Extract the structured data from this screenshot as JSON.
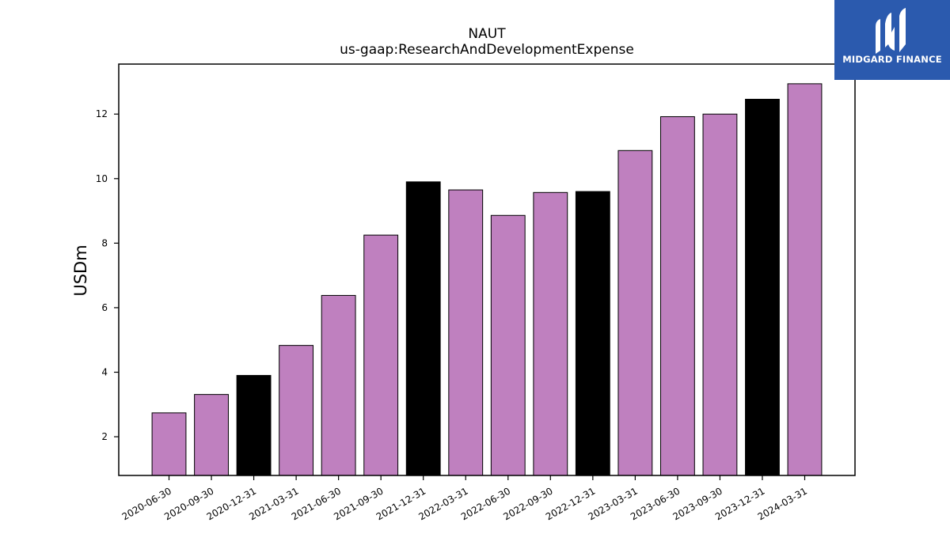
{
  "chart_data": {
    "type": "bar",
    "title": "NAUT",
    "subtitle": "us-gaap:ResearchAndDevelopmentExpense",
    "xlabel": "",
    "ylabel": "USDm",
    "categories": [
      "2020-06-30",
      "2020-09-30",
      "2020-12-31",
      "2021-03-31",
      "2021-06-30",
      "2021-09-30",
      "2021-12-31",
      "2022-03-31",
      "2022-06-30",
      "2022-09-30",
      "2022-12-31",
      "2023-03-31",
      "2023-06-30",
      "2023-09-30",
      "2023-12-31",
      "2024-03-31"
    ],
    "values": [
      2.74,
      3.31,
      3.9,
      4.83,
      6.38,
      8.25,
      9.9,
      9.65,
      8.86,
      9.57,
      9.6,
      10.87,
      11.92,
      12.0,
      12.46,
      12.94
    ],
    "colors": [
      "#bf80bf",
      "#bf80bf",
      "#000000",
      "#bf80bf",
      "#bf80bf",
      "#bf80bf",
      "#000000",
      "#bf80bf",
      "#bf80bf",
      "#bf80bf",
      "#000000",
      "#bf80bf",
      "#bf80bf",
      "#bf80bf",
      "#000000",
      "#bf80bf"
    ],
    "ylim": [
      0.8,
      13.55
    ],
    "yticks": [
      2,
      4,
      6,
      8,
      10,
      12
    ],
    "grid": false,
    "legend": false
  },
  "logo": {
    "text": "MIDGARD FINANCE",
    "background": "#2b5aae"
  }
}
